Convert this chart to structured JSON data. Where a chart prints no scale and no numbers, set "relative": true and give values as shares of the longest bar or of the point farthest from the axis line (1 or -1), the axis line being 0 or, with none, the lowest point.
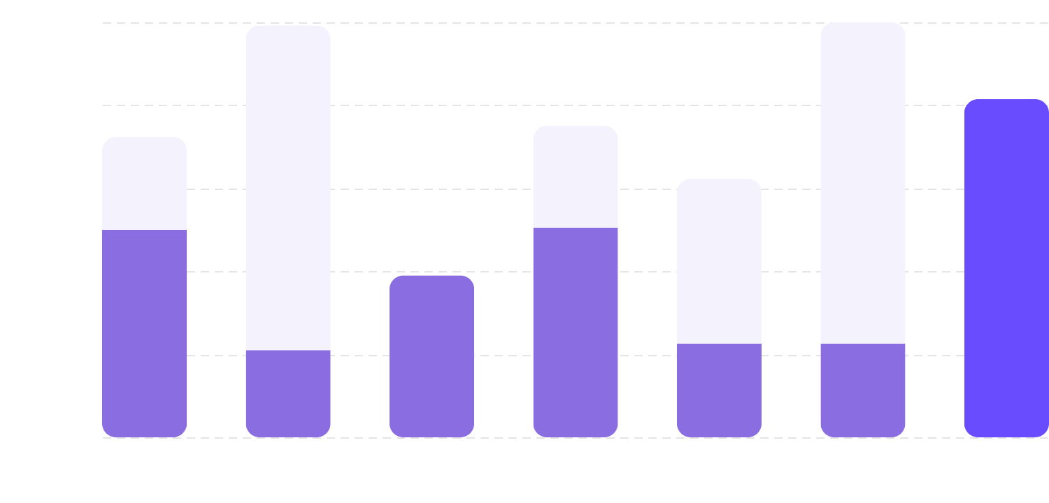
{
  "chart_data": {
    "type": "bar",
    "relative": true,
    "stacked": true,
    "grid": "y",
    "categories": [
      null,
      null,
      null,
      null,
      null,
      null,
      null
    ],
    "series": [
      {
        "colors": [
          "#8a6de0",
          "#8a6de0",
          "#8a6de0",
          "#8a6de0",
          "#8a6de0",
          "#8a6de0",
          "#6a4cff"
        ],
        "values": [
          0.5,
          0.21,
          0.39,
          0.505,
          0.226,
          0.226,
          0.815
        ]
      },
      {
        "color": "#f4f2fd",
        "values": [
          0.224,
          0.783,
          null,
          0.246,
          0.397,
          0.774,
          null
        ]
      }
    ]
  }
}
